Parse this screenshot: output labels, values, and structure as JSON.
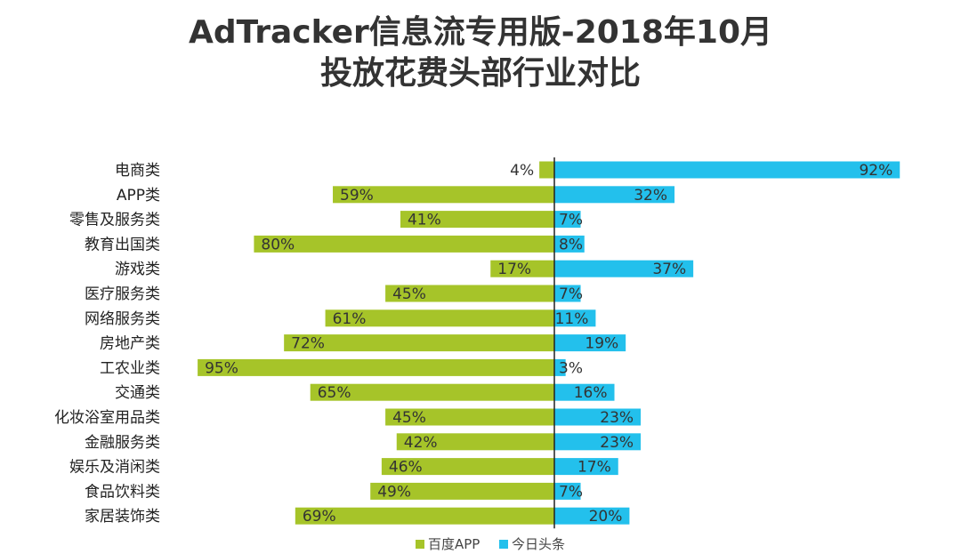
{
  "title": {
    "line1": "AdTracker信息流专用版-2018年10月",
    "line2": "投放花费头部行业对比"
  },
  "colors": {
    "baidu": "#a6c429",
    "toutiao": "#23c0ec",
    "axis": "#222222"
  },
  "chart_data": {
    "type": "bar",
    "orientation": "horizontal-diverging",
    "categories": [
      "电商类",
      "APP类",
      "零售及服务类",
      "教育出国类",
      "游戏类",
      "医疗服务类",
      "网络服务类",
      "房地产类",
      "工农业类",
      "交通类",
      "化妆浴室用品类",
      "金融服务类",
      "娱乐及消闲类",
      "食品饮料类",
      "家居装饰类"
    ],
    "series": [
      {
        "name": "百度APP",
        "direction": "left",
        "values": [
          4,
          59,
          41,
          80,
          17,
          45,
          61,
          72,
          95,
          65,
          45,
          42,
          46,
          49,
          69
        ],
        "labels": [
          "4%",
          "59%",
          "41%",
          "80%",
          "17%",
          "45%",
          "61%",
          "72%",
          "95%",
          "65%",
          "45%",
          "42%",
          "46%",
          "49%",
          "69%"
        ]
      },
      {
        "name": "今日头条",
        "direction": "right",
        "values": [
          92,
          32,
          7,
          8,
          37,
          7,
          11,
          19,
          3,
          16,
          23,
          23,
          17,
          7,
          20
        ],
        "labels": [
          "92%",
          "32%",
          "7%",
          "8%",
          "37%",
          "7%",
          "11%",
          "19%",
          "3%",
          "16%",
          "23%",
          "23%",
          "17%",
          "7%",
          "20%"
        ]
      }
    ],
    "unit": "%",
    "xlim": [
      0,
      100
    ],
    "legend_position": "bottom-center",
    "grid": false
  }
}
